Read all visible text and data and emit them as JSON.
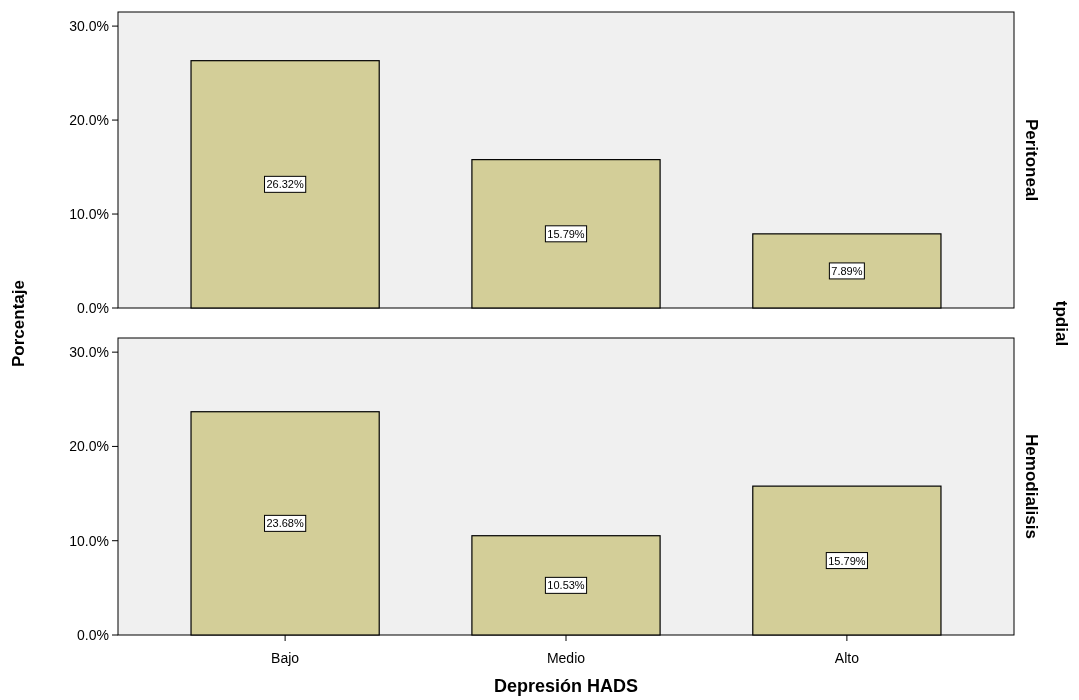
{
  "chart_data": [
    {
      "type": "bar",
      "title": "Peritoneal",
      "ylabel": "Porcentaje",
      "annotations": [
        "tpdial"
      ],
      "categories": [
        null,
        null,
        null
      ],
      "values": [
        26.32,
        15.79,
        7.89
      ],
      "value_labels": [
        "26.32%",
        "15.79%",
        "7.89%"
      ],
      "color": "#d3ce98",
      "ylim": [
        0,
        31.5
      ],
      "yticks": [
        {
          "value": 0,
          "label": "0.0%"
        },
        {
          "value": 10,
          "label": "10.0%"
        },
        {
          "value": 20,
          "label": "20.0%"
        },
        {
          "value": 30,
          "label": "30.0%"
        }
      ],
      "tick_labels": "y",
      "grid": false
    },
    {
      "type": "bar",
      "title": "Hemodialisis",
      "xlabel": "Depresión HADS",
      "categories": [
        "Bajo",
        "Medio",
        "Alto"
      ],
      "values": [
        23.68,
        10.53,
        15.79
      ],
      "value_labels": [
        "23.68%",
        "10.53%",
        "15.79%"
      ],
      "color": "#d3ce98",
      "ylim": [
        0,
        31.5
      ],
      "yticks": [
        {
          "value": 0,
          "label": "0.0%"
        },
        {
          "value": 10,
          "label": "10.0%"
        },
        {
          "value": 20,
          "label": "20.0%"
        },
        {
          "value": 30,
          "label": "30.0%"
        }
      ],
      "grid": false
    }
  ]
}
